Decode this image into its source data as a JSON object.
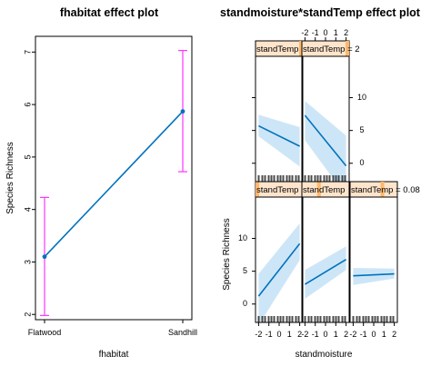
{
  "chart_data": [
    {
      "type": "line",
      "title": "fhabitat effect plot",
      "xlabel": "fhabitat",
      "ylabel": "Species Richness",
      "categories": [
        "Flatwood",
        "Sandhill"
      ],
      "values": [
        3.1,
        5.87
      ],
      "lower": [
        1.98,
        4.72
      ],
      "upper": [
        4.23,
        7.03
      ],
      "ylim": [
        1.9,
        7.3
      ],
      "yticks": [
        "2",
        "3",
        "4",
        "5",
        "6",
        "7"
      ],
      "colors": {
        "line": "#0072bd",
        "ci": "#ff33ff"
      }
    },
    {
      "type": "line",
      "title": "standmoisture*standTemp effect plot",
      "xlabel": "standmoisture",
      "ylabel": "Species Richness",
      "xlim": [
        -2.3,
        2.3
      ],
      "ylim": [
        -2.8,
        16.3
      ],
      "xticks": [
        "-2",
        "-1",
        "0",
        "1",
        "2"
      ],
      "yticks_left": [
        "0",
        "5",
        "10"
      ],
      "yticks_right": [
        "0",
        "5",
        "10"
      ],
      "panels": [
        {
          "row": "bottom",
          "col": 0,
          "strip": "standTemp",
          "strip_level": 0.0,
          "x": [
            -2,
            2
          ],
          "y": [
            1.2,
            9.2
          ],
          "lower": [
            -3.2,
            6.7
          ],
          "upper": [
            4.6,
            12.3
          ]
        },
        {
          "row": "bottom",
          "col": 1,
          "strip": "standTemp",
          "strip_level": 0.35,
          "x": [
            -2,
            2
          ],
          "y": [
            3.0,
            6.8
          ],
          "lower": [
            0.8,
            5.2
          ],
          "upper": [
            5.2,
            8.8
          ]
        },
        {
          "row": "bottom",
          "col": 2,
          "strip": "standTemp = 0.08",
          "strip_level": 0.7,
          "x": [
            -2,
            2
          ],
          "y": [
            4.3,
            4.6
          ],
          "lower": [
            2.9,
            3.9
          ],
          "upper": [
            5.5,
            5.4
          ]
        },
        {
          "row": "top",
          "col": 0,
          "strip": "standTemp",
          "strip_level": 1.0,
          "x": [
            -2,
            2
          ],
          "y": [
            5.7,
            2.6
          ],
          "lower": [
            4.1,
            -0.5
          ],
          "upper": [
            7.4,
            5.5
          ]
        },
        {
          "row": "top",
          "col": 1,
          "strip": "standTemp = 2",
          "strip_level": 1.0,
          "x": [
            -2,
            2
          ],
          "y": [
            7.3,
            -0.4
          ],
          "lower": [
            3.5,
            -5.0
          ],
          "upper": [
            9.5,
            4.2
          ]
        }
      ],
      "colors": {
        "line": "#0072bd",
        "band": "#cde6f7",
        "strip_bg": "#ffe5cc",
        "strip_bar": "#ffb86b"
      }
    }
  ]
}
